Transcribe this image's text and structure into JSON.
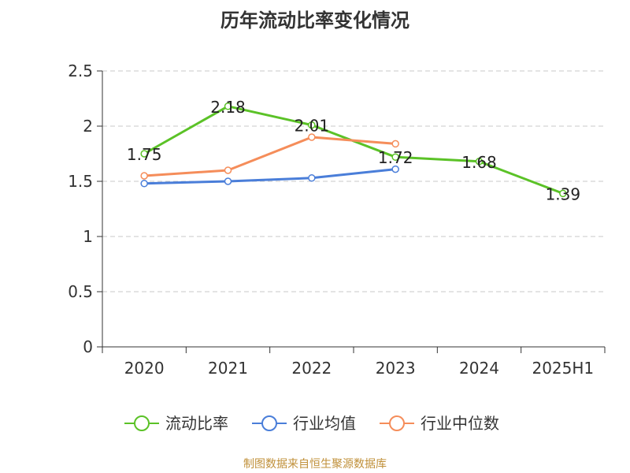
{
  "title": "历年流动比率变化情况",
  "source": "制图数据来自恒生聚源数据库",
  "chart_data": {
    "type": "line",
    "title": "历年流动比率变化情况",
    "categories": [
      "2020",
      "2021",
      "2022",
      "2023",
      "2024",
      "2025H1"
    ],
    "ylim": [
      0,
      2.5
    ],
    "yticks": [
      "0",
      "0.5",
      "1",
      "1.5",
      "2",
      "2.5"
    ],
    "grid": true,
    "legend": "bottom",
    "series": [
      {
        "name": "流动比率",
        "color": "#5bc227",
        "values": [
          1.75,
          2.18,
          2.01,
          1.72,
          1.68,
          1.39
        ],
        "labels": [
          "1.75",
          "2.18",
          "2.01",
          "1.72",
          "1.68",
          "1.39"
        ]
      },
      {
        "name": "行业均值",
        "color": "#4a7ed9",
        "values": [
          1.48,
          1.5,
          1.53,
          1.61,
          null,
          null
        ]
      },
      {
        "name": "行业中位数",
        "color": "#f58d5a",
        "values": [
          1.55,
          1.6,
          1.9,
          1.84,
          null,
          null
        ]
      }
    ]
  }
}
